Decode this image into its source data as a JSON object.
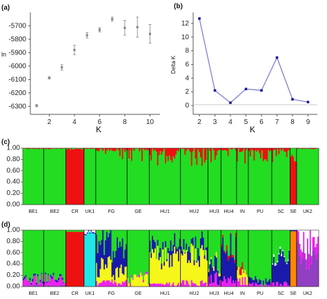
{
  "colors": {
    "panel_a_point": "#888888",
    "panel_a_errorbar": "#999999",
    "panel_b_line": "#7f7fd0",
    "panel_b_point": "#1a1a9a",
    "green": "#22dd22",
    "red": "#ee1111",
    "blue": "#1a1aaa",
    "yellow": "#f6f61a",
    "magenta": "#ee22ee",
    "cyan": "#22e6e6",
    "orange": "#ff8800",
    "purple": "#9040c0",
    "white": "#ffffff"
  },
  "panels": {
    "a": "(a)",
    "b": "(b)",
    "c": "(c)",
    "d": "(d)"
  },
  "chart_data": [
    {
      "type": "scatter",
      "panel": "(a)",
      "xlabel": "K",
      "ylabel": "ln",
      "xlim": [
        0.5,
        10.8
      ],
      "ylim": [
        -6360,
        -5600
      ],
      "xticks": [
        "2",
        "4",
        "6",
        "8",
        "10"
      ],
      "yticks": [
        "-5700",
        "-5800",
        "-5900",
        "-6000",
        "-6100",
        "-6200",
        "-6300"
      ],
      "points": [
        {
          "x": 1,
          "y": -6295,
          "err": 8
        },
        {
          "x": 2,
          "y": -6088,
          "err": 8
        },
        {
          "x": 3,
          "y": -6010,
          "err": 20
        },
        {
          "x": 4,
          "y": -5880,
          "err": 35
        },
        {
          "x": 5,
          "y": -5770,
          "err": 20
        },
        {
          "x": 6,
          "y": -5730,
          "err": 15
        },
        {
          "x": 7,
          "y": -5650,
          "err": 15
        },
        {
          "x": 8,
          "y": -5715,
          "err": 55
        },
        {
          "x": 9,
          "y": -5710,
          "err": 75
        },
        {
          "x": 10,
          "y": -5760,
          "err": 70
        }
      ],
      "grid": false
    },
    {
      "type": "line",
      "panel": "(b)",
      "xlabel": "K",
      "ylabel": "Delta K",
      "xlim": [
        1.6,
        9.6
      ],
      "ylim": [
        -1.3,
        13.6
      ],
      "xticks": [
        "2",
        "3",
        "4",
        "5",
        "6",
        "7",
        "8",
        "9"
      ],
      "yticks": [
        "0",
        "2",
        "4",
        "6",
        "8",
        "10",
        "12"
      ],
      "x": [
        2,
        3,
        4,
        5,
        6,
        7,
        8,
        9
      ],
      "y": [
        12.7,
        2.2,
        0.4,
        2.4,
        2.2,
        7.0,
        0.9,
        0.5
      ],
      "grid": false
    },
    {
      "type": "bar",
      "subtype": "stacked-membership",
      "panel": "(c)",
      "yticks": [
        "1.00",
        "0.80",
        "0.60",
        "0.40",
        "0.20",
        "0.00"
      ],
      "ylim": [
        0,
        1
      ],
      "groups": [
        {
          "label": "BE1",
          "n": 16
        },
        {
          "label": "BE2",
          "n": 17
        },
        {
          "label": "CR",
          "n": 14
        },
        {
          "label": "UK1",
          "n": 9
        },
        {
          "label": "FG",
          "n": 24
        },
        {
          "label": "GE",
          "n": 17
        },
        {
          "label": "HU1",
          "n": 24
        },
        {
          "label": "HU2",
          "n": 21
        },
        {
          "label": "HU3",
          "n": 10
        },
        {
          "label": "HU4",
          "n": 12
        },
        {
          "label": "IN",
          "n": 9
        },
        {
          "label": "PU",
          "n": 18
        },
        {
          "label": "SC",
          "n": 14
        },
        {
          "label": "SE",
          "n": 5
        },
        {
          "label": "UK2",
          "n": 17
        }
      ]
    },
    {
      "type": "bar",
      "subtype": "stacked-membership",
      "panel": "(d)",
      "yticks": [
        "1.00",
        "0.80",
        "0.60",
        "0.40",
        "0.20",
        "0.00"
      ],
      "ylim": [
        0,
        1
      ],
      "groups": [
        {
          "label": "BE1",
          "n": 16
        },
        {
          "label": "BE2",
          "n": 17
        },
        {
          "label": "CR",
          "n": 14
        },
        {
          "label": "UK1",
          "n": 9
        },
        {
          "label": "FG",
          "n": 24
        },
        {
          "label": "GE",
          "n": 17
        },
        {
          "label": "HU1",
          "n": 24
        },
        {
          "label": "HU2",
          "n": 21
        },
        {
          "label": "HU3",
          "n": 10
        },
        {
          "label": "HU4",
          "n": 12
        },
        {
          "label": "IN",
          "n": 9
        },
        {
          "label": "PU",
          "n": 18
        },
        {
          "label": "SC",
          "n": 14
        },
        {
          "label": "SE",
          "n": 5
        },
        {
          "label": "UK2",
          "n": 17
        }
      ]
    }
  ]
}
